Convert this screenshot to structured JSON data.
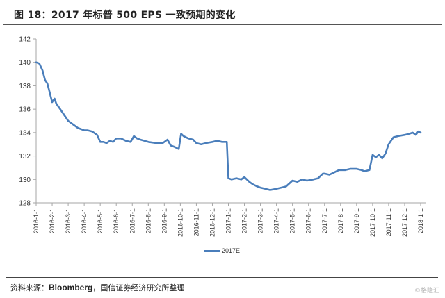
{
  "header": {
    "title": "图 18：2017 年标普 500 EPS 一致预期的变化"
  },
  "legend": {
    "items": [
      {
        "label": "2017E",
        "color": "#4a7ebb"
      }
    ]
  },
  "footer": {
    "source_prefix": "资料来源：",
    "source_brand": "Bloomberg",
    "source_suffix": "，国信证券经济研究所整理",
    "watermark": "©格隆汇"
  },
  "colors": {
    "series": "#4a7ebb",
    "axis": "#a6a6a6",
    "text": "#333333"
  },
  "chart_data": {
    "type": "line",
    "title": "图 18：2017 年标普 500 EPS 一致预期的变化",
    "xlabel": "",
    "ylabel": "",
    "ylim": [
      128,
      142
    ],
    "yticks": [
      128,
      130,
      132,
      134,
      136,
      138,
      140,
      142
    ],
    "grid": false,
    "legend_position": "bottom",
    "categories": [
      "2016-1-1",
      "2016-2-1",
      "2016-3-1",
      "2016-4-1",
      "2016-5-1",
      "2016-6-1",
      "2016-7-1",
      "2016-8-1",
      "2016-9-1",
      "2016-10-1",
      "2016-11-1",
      "2016-12-1",
      "2017-1-1",
      "2017-2-1",
      "2017-3-1",
      "2017-4-1",
      "2017-5-1",
      "2017-6-1",
      "2017-7-1",
      "2017-8-1",
      "2017-9-1",
      "2017-10-1",
      "2017-11-1",
      "2017-12-1",
      "2018-1-1"
    ],
    "series": [
      {
        "name": "2017E",
        "x_months": [
          0,
          0.2,
          0.4,
          0.55,
          0.7,
          0.85,
          1.0,
          1.15,
          1.25,
          1.35,
          1.5,
          1.7,
          2.0,
          2.3,
          2.6,
          3.0,
          3.2,
          3.5,
          3.8,
          4.0,
          4.2,
          4.4,
          4.6,
          4.8,
          5.0,
          5.3,
          5.6,
          5.9,
          6.1,
          6.3,
          6.5,
          7.0,
          7.5,
          7.9,
          8.2,
          8.4,
          8.6,
          8.9,
          9.05,
          9.2,
          9.5,
          9.8,
          10.0,
          10.3,
          10.6,
          11.0,
          11.3,
          11.6,
          11.9,
          12.0,
          12.2,
          12.5,
          12.8,
          13.0,
          13.3,
          13.5,
          13.8,
          14.0,
          14.3,
          14.6,
          15.0,
          15.3,
          15.6,
          16.0,
          16.3,
          16.6,
          16.9,
          17.3,
          17.6,
          17.9,
          18.0,
          18.3,
          18.6,
          18.9,
          19.0,
          19.3,
          19.6,
          20.0,
          20.3,
          20.5,
          20.8,
          21.0,
          21.2,
          21.4,
          21.6,
          21.8,
          22.0,
          22.3,
          22.6,
          23.0,
          23.3,
          23.5,
          23.7,
          23.85,
          24.0
        ],
        "values": [
          140.0,
          139.9,
          139.3,
          138.5,
          138.2,
          137.4,
          136.6,
          136.9,
          136.5,
          136.3,
          136.0,
          135.6,
          135.0,
          134.7,
          134.4,
          134.2,
          134.2,
          134.1,
          133.8,
          133.2,
          133.2,
          133.1,
          133.3,
          133.2,
          133.5,
          133.5,
          133.3,
          133.2,
          133.7,
          133.5,
          133.4,
          133.2,
          133.1,
          133.1,
          133.4,
          132.9,
          132.8,
          132.6,
          133.9,
          133.7,
          133.5,
          133.4,
          133.1,
          133.0,
          133.1,
          133.2,
          133.3,
          133.2,
          133.2,
          130.1,
          130.0,
          130.1,
          130.0,
          130.2,
          129.8,
          129.6,
          129.4,
          129.3,
          129.2,
          129.1,
          129.2,
          129.3,
          129.4,
          129.9,
          129.8,
          130.0,
          129.9,
          130.0,
          130.1,
          130.5,
          130.5,
          130.4,
          130.6,
          130.8,
          130.8,
          130.8,
          130.9,
          130.9,
          130.8,
          130.7,
          130.8,
          132.1,
          131.9,
          132.1,
          131.8,
          132.2,
          133.0,
          133.6,
          133.7,
          133.8,
          133.9,
          134.0,
          133.8,
          134.1,
          134.0
        ]
      }
    ]
  }
}
